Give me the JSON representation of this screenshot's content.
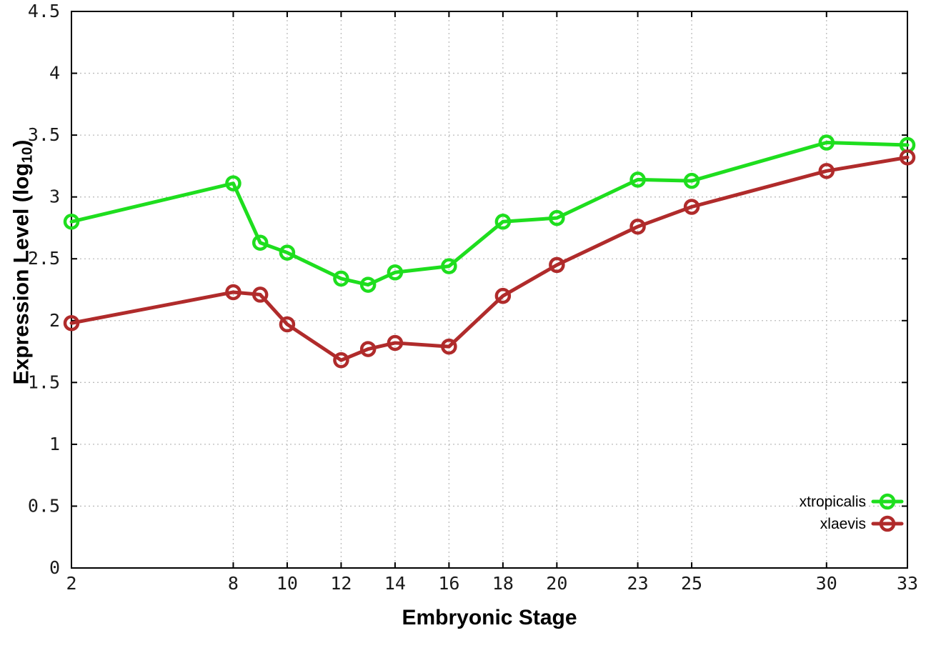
{
  "chart_data": {
    "type": "line",
    "title": "",
    "xlabel": "Embryonic Stage",
    "ylabel": "Expression Level (log10)",
    "ylabel_parts": {
      "prefix": "Expression Level (log",
      "subscript": "10",
      "suffix": ")"
    },
    "x": [
      2,
      8,
      9,
      10,
      12,
      13,
      14,
      16,
      18,
      20,
      23,
      25,
      30,
      33
    ],
    "series": [
      {
        "name": "xtropicalis",
        "color": "#1ede1e",
        "values": [
          2.8,
          3.11,
          2.63,
          2.55,
          2.34,
          2.29,
          2.39,
          2.44,
          2.8,
          2.83,
          3.14,
          3.13,
          3.44,
          3.42
        ]
      },
      {
        "name": "xlaevis",
        "color": "#b02b2b",
        "values": [
          1.98,
          2.23,
          2.21,
          1.97,
          1.68,
          1.77,
          1.82,
          1.79,
          2.2,
          2.45,
          2.76,
          2.92,
          3.21,
          3.32
        ]
      }
    ],
    "xlim": [
      2,
      33
    ],
    "ylim": [
      0,
      4.5
    ],
    "xticks": [
      2,
      8,
      10,
      12,
      14,
      16,
      18,
      20,
      23,
      25,
      30,
      33
    ],
    "xtick_labels": [
      "2",
      "8",
      "10",
      "12",
      "14",
      "16",
      "18",
      "20",
      "23",
      "25",
      "30",
      "33"
    ],
    "yticks": [
      0,
      0.5,
      1,
      1.5,
      2,
      2.5,
      3,
      3.5,
      4,
      4.5
    ],
    "ytick_labels": [
      "0",
      "0.5",
      "1",
      "1.5",
      "2",
      "2.5",
      "3",
      "3.5",
      "4",
      "4.5"
    ],
    "grid": true,
    "marker": "open-circle",
    "legend_position": "bottom-right",
    "colors": {
      "background": "#ffffff",
      "grid": "#bcbcbc",
      "axis": "#000000",
      "tick_text": "#1a1a1a"
    }
  }
}
